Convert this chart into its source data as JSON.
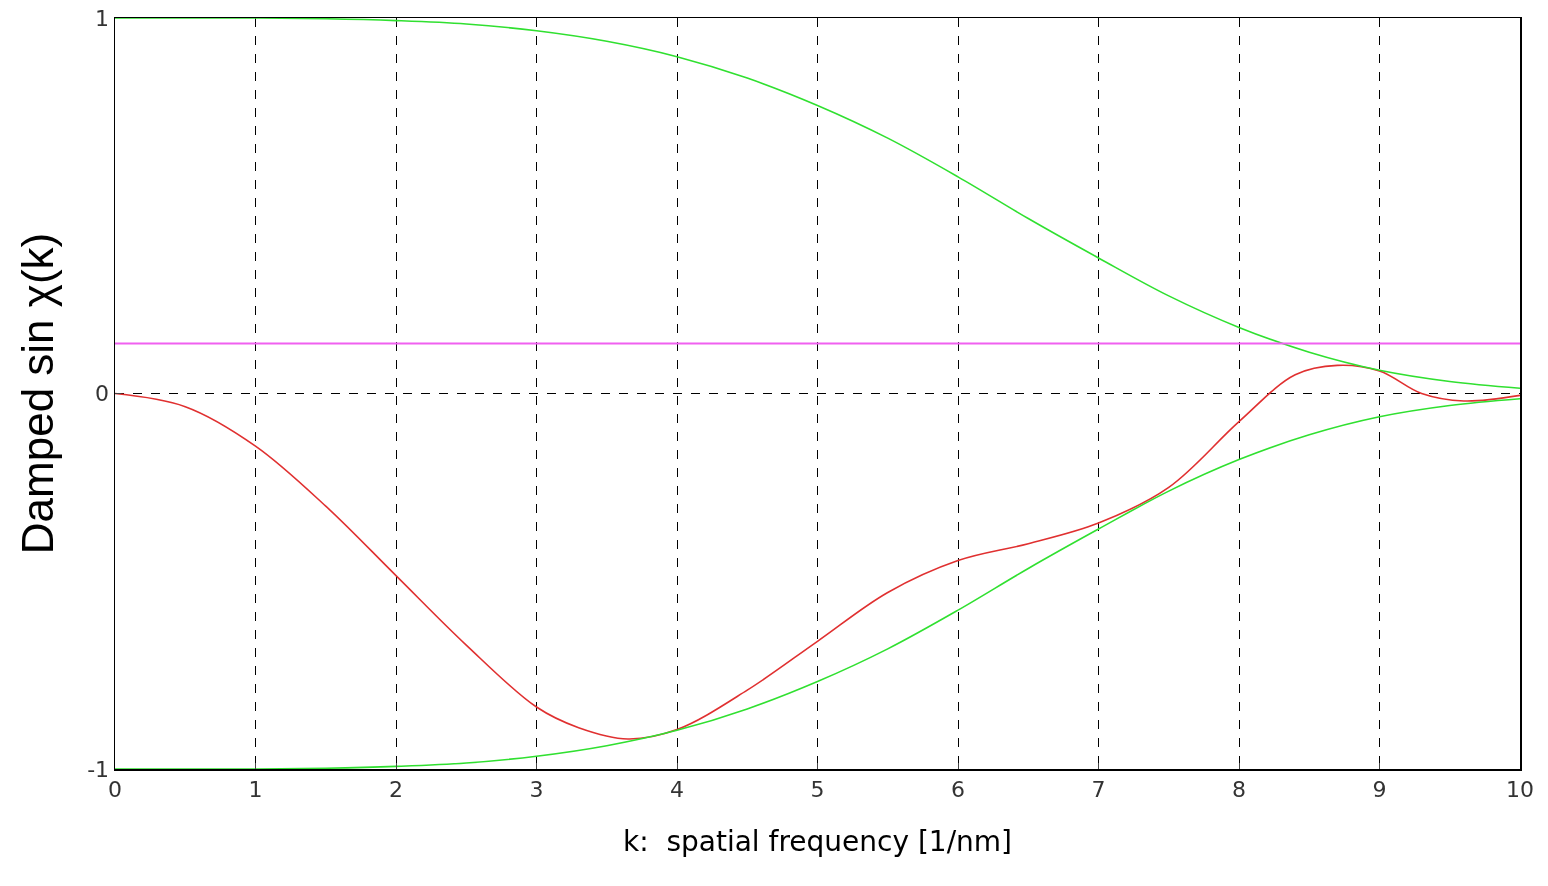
{
  "chart_data": {
    "type": "line",
    "xlabel": "k:  spatial frequency [1/nm]",
    "ylabel": "Damped sin χ(k)",
    "series": [
      {
        "color": "#e03030",
        "x": [
          0,
          0.5,
          1,
          1.5,
          2,
          2.5,
          3,
          3.3,
          3.65,
          4,
          4.5,
          5,
          5.5,
          6,
          6.5,
          7,
          7.5,
          8,
          8.4,
          8.7,
          9,
          9.3,
          9.6,
          10
        ],
        "values": [
          0,
          -0.035,
          -0.14,
          -0.3,
          -0.485,
          -0.67,
          -0.835,
          -0.89,
          -0.92,
          -0.895,
          -0.79,
          -0.66,
          -0.53,
          -0.445,
          -0.4,
          -0.345,
          -0.25,
          -0.075,
          0.05,
          0.075,
          0.06,
          0,
          -0.02,
          -0.005
        ]
      },
      {
        "color": "#30e030",
        "x": [
          0,
          0.5,
          1,
          1.5,
          2,
          2.5,
          3,
          3.5,
          4,
          4.5,
          5,
          5.5,
          6,
          6.5,
          7,
          7.5,
          8,
          8.5,
          9,
          9.5,
          10
        ],
        "values": [
          1,
          1,
          1,
          0.998,
          0.993,
          0.984,
          0.966,
          0.938,
          0.897,
          0.84,
          0.767,
          0.68,
          0.577,
          0.466,
          0.361,
          0.26,
          0.176,
          0.11,
          0.062,
          0.032,
          0.014
        ]
      },
      {
        "color": "#30e030",
        "x": [
          0,
          0.5,
          1,
          1.5,
          2,
          2.5,
          3,
          3.5,
          4,
          4.5,
          5,
          5.5,
          6,
          6.5,
          7,
          7.5,
          8,
          8.5,
          9,
          9.5,
          10
        ],
        "values": [
          -1,
          -1,
          -1,
          -0.998,
          -0.993,
          -0.984,
          -0.966,
          -0.938,
          -0.897,
          -0.84,
          -0.767,
          -0.68,
          -0.577,
          -0.466,
          -0.361,
          -0.26,
          -0.176,
          -0.11,
          -0.062,
          -0.032,
          -0.014
        ]
      }
    ],
    "ref_lines": [
      {
        "axis": "y",
        "value": 0.133,
        "color": "#f060f0"
      }
    ],
    "xlim": [
      0,
      10
    ],
    "xticks": [
      0,
      1,
      2,
      3,
      4,
      5,
      6,
      7,
      8,
      9,
      10
    ],
    "ylim": [
      -1,
      1
    ],
    "yticks": [
      -1,
      0,
      1
    ],
    "grid": true,
    "line_style": "solid",
    "marker": "none"
  }
}
